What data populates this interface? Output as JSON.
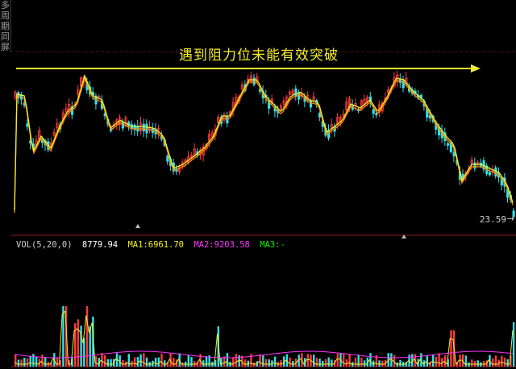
{
  "side_tab": [
    "多",
    "周",
    "期",
    "同",
    "屏"
  ],
  "annotation": {
    "text": "遇到阻力位未能有效突破",
    "color": "#f2ee2a"
  },
  "price_panel": {
    "last_price": "23.59",
    "last_price_arrow": "→"
  },
  "volume_panel": {
    "label": "VOL(5,20,0)",
    "value": "8779.94",
    "ma1": "MA1:6961.70",
    "ma2": "MA2:9203.58",
    "ma3": "MA3:-"
  },
  "colors": {
    "up": "#ff3a3a",
    "down": "#33e0e8",
    "ma_short": "#f2ee2a",
    "ma_long": "#ff8c00",
    "vol_ma1": "#f2ee2a",
    "vol_ma2": "#ff33ff",
    "vol_ma3": "#00ee00",
    "grid": "#8b1a1a"
  },
  "icons": [
    "resistance-arrow-icon",
    "period-marker-icon"
  ]
}
